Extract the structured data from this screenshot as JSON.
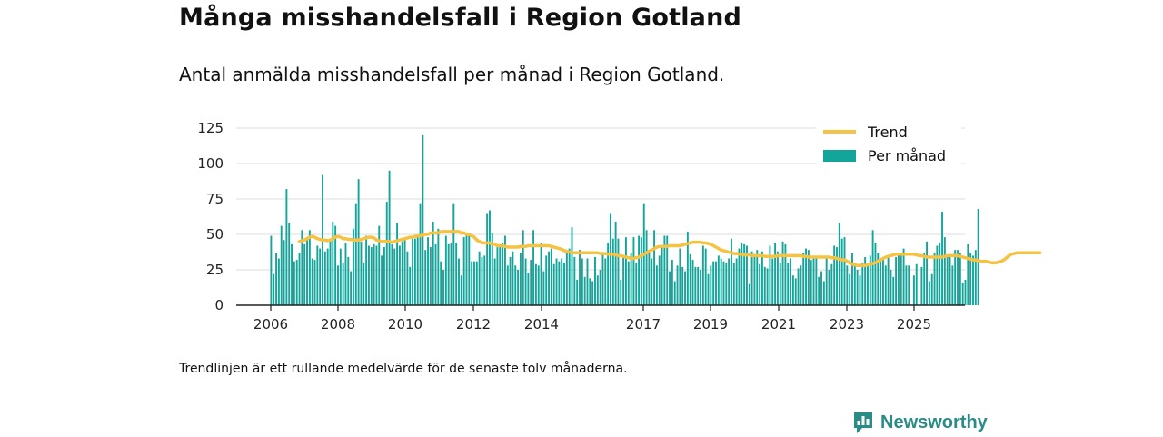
{
  "page": {
    "title": "Många misshandelsfall i Region Gotland",
    "subtitle": "Antal anmälda misshandelsfall per månad i Region Gotland.",
    "footnote": "Trendlinjen är ett rullande medelvärde för de senaste tolv månaderna.",
    "brand": {
      "name": "Newsworthy",
      "icon": "newsworthy-logo-icon",
      "color": "#2a8c86"
    }
  },
  "chart_data": {
    "type": "bar",
    "title": "",
    "xlabel": "",
    "ylabel": "",
    "ylim": [
      0,
      125
    ],
    "yticks": [
      0,
      25,
      50,
      75,
      100,
      125
    ],
    "xtick_labels": [
      "2006",
      "2008",
      "2010",
      "2012",
      "2014",
      "2017",
      "2019",
      "2021",
      "2023",
      "2025"
    ],
    "grid": true,
    "legend": {
      "placement": "top-right",
      "entries": [
        {
          "name": "Trend",
          "color": "#f5c242",
          "kind": "line"
        },
        {
          "name": "Per månad",
          "color": "#13a49a",
          "kind": "bar"
        }
      ]
    },
    "series": [
      {
        "name": "Per månad",
        "kind": "bar",
        "color": "#13a49a",
        "start": "2006-01",
        "values": [
          49,
          22,
          37,
          33,
          56,
          46,
          82,
          58,
          43,
          31,
          32,
          37,
          53,
          43,
          46,
          53,
          33,
          32,
          42,
          40,
          92,
          38,
          40,
          46,
          59,
          56,
          28,
          40,
          30,
          44,
          34,
          24,
          54,
          72,
          89,
          45,
          30,
          49,
          42,
          41,
          43,
          42,
          56,
          35,
          41,
          73,
          95,
          43,
          40,
          58,
          42,
          45,
          48,
          38,
          27,
          48,
          47,
          48,
          72,
          120,
          39,
          48,
          41,
          59,
          43,
          54,
          31,
          25,
          49,
          43,
          44,
          72,
          44,
          33,
          21,
          48,
          49,
          51,
          31,
          31,
          31,
          38,
          34,
          35,
          65,
          67,
          51,
          33,
          41,
          41,
          44,
          49,
          28,
          34,
          38,
          28,
          25,
          37,
          53,
          33,
          23,
          32,
          53,
          29,
          28,
          44,
          24,
          35,
          38,
          40,
          29,
          33,
          31,
          33,
          30,
          38,
          40,
          55,
          34,
          18,
          39,
          33,
          20,
          33,
          19,
          17,
          34,
          21,
          25,
          36,
          33,
          44,
          65,
          47,
          59,
          47,
          18,
          34,
          48,
          31,
          37,
          48,
          30,
          49,
          48,
          72,
          53,
          39,
          33,
          53,
          28,
          35,
          42,
          49,
          49,
          24,
          32,
          17,
          28,
          40,
          27,
          24,
          52,
          36,
          32,
          27,
          27,
          25,
          42,
          40,
          22,
          28,
          31,
          31,
          35,
          33,
          31,
          30,
          33,
          47,
          30,
          33,
          40,
          44,
          43,
          42,
          15,
          38,
          36,
          39,
          29,
          38,
          27,
          26,
          42,
          33,
          44,
          38,
          30,
          45,
          43,
          30,
          33,
          21,
          19,
          26,
          28,
          37,
          40,
          39,
          32,
          33,
          33,
          20,
          24,
          17,
          33,
          25,
          29,
          42,
          41,
          58,
          47,
          48,
          28,
          22,
          37,
          29,
          25,
          21,
          30,
          34,
          28,
          35,
          53,
          44,
          37,
          31,
          34,
          28,
          34,
          25,
          20,
          34,
          37,
          37,
          40,
          28,
          28,
          0,
          21,
          29,
          0,
          27,
          37,
          45,
          17,
          22,
          37,
          42,
          44,
          66,
          48,
          34,
          35,
          28,
          39,
          39,
          37,
          16,
          18,
          43,
          37,
          35,
          39,
          68
        ]
      },
      {
        "name": "Trend",
        "kind": "line",
        "color": "#f5c242",
        "start": "2006-12",
        "values": [
          45,
          45.5,
          46,
          47,
          48,
          48.5,
          48,
          47,
          46.5,
          46,
          46,
          45.5,
          46,
          47,
          48,
          48.5,
          48,
          47,
          47,
          46.5,
          46.5,
          46,
          46,
          46,
          46.5,
          47,
          47.5,
          48,
          48,
          47.5,
          46,
          45.5,
          45,
          45,
          45,
          45,
          44.5,
          45,
          45.5,
          46,
          46.5,
          47,
          47.5,
          48,
          48,
          48.5,
          49,
          49,
          49.5,
          50,
          50,
          51,
          51,
          51,
          51,
          52,
          52,
          52,
          52,
          52,
          52,
          52,
          52,
          51,
          51,
          50,
          50,
          49,
          48,
          46,
          45,
          44,
          44,
          44,
          44,
          43,
          43,
          42,
          42,
          42,
          41.5,
          41,
          41,
          41,
          41,
          41,
          41.5,
          41.5,
          41.5,
          42,
          42,
          42,
          42,
          42,
          42,
          42,
          42,
          42,
          41.5,
          41,
          40.5,
          40,
          39.5,
          38.5,
          38,
          37.5,
          37,
          37,
          37,
          37,
          37,
          37,
          37,
          37,
          37,
          37,
          37,
          36.5,
          36.5,
          36.5,
          36,
          36,
          36,
          35.5,
          35,
          35,
          34.5,
          34,
          33.5,
          33,
          33,
          33.5,
          34,
          35,
          36,
          37,
          38,
          39,
          40,
          41,
          41.5,
          41.5,
          41.5,
          41.5,
          42,
          42,
          42,
          42,
          42,
          42.5,
          43,
          43.5,
          44,
          44.5,
          44.5,
          44.5,
          44.5,
          44,
          44,
          43.5,
          43,
          42,
          41,
          40,
          39,
          38.5,
          38,
          37.5,
          37,
          36.5,
          36.5,
          36,
          36,
          35.5,
          35.5,
          35.5,
          35,
          35,
          35,
          35,
          35,
          34.5,
          34.5,
          34.5,
          34.5,
          34.5,
          35,
          35,
          35,
          35,
          35,
          35,
          35,
          35,
          35,
          35,
          34.5,
          34.5,
          34,
          34,
          34,
          34,
          34,
          34,
          34,
          34,
          34,
          33.5,
          33.5,
          33,
          32.5,
          32,
          32,
          31,
          30,
          29,
          28.5,
          28,
          28,
          28,
          28,
          28.5,
          29,
          29.5,
          30,
          31,
          32,
          33,
          34,
          34.5,
          35,
          35.5,
          36,
          36,
          36,
          36,
          36,
          36,
          36,
          36,
          35.5,
          35,
          35,
          34.5,
          34,
          34,
          34,
          34,
          34,
          34,
          34,
          34.5,
          35,
          35,
          35,
          35,
          35,
          34.5,
          34,
          33.5,
          33,
          32.5,
          32,
          32,
          31.5,
          31,
          31,
          31,
          30.5,
          30,
          30,
          30,
          30.5,
          31,
          32,
          33.5,
          35,
          36,
          36.5,
          37,
          37,
          37,
          37,
          37,
          37,
          37,
          37,
          37,
          37
        ]
      }
    ]
  }
}
